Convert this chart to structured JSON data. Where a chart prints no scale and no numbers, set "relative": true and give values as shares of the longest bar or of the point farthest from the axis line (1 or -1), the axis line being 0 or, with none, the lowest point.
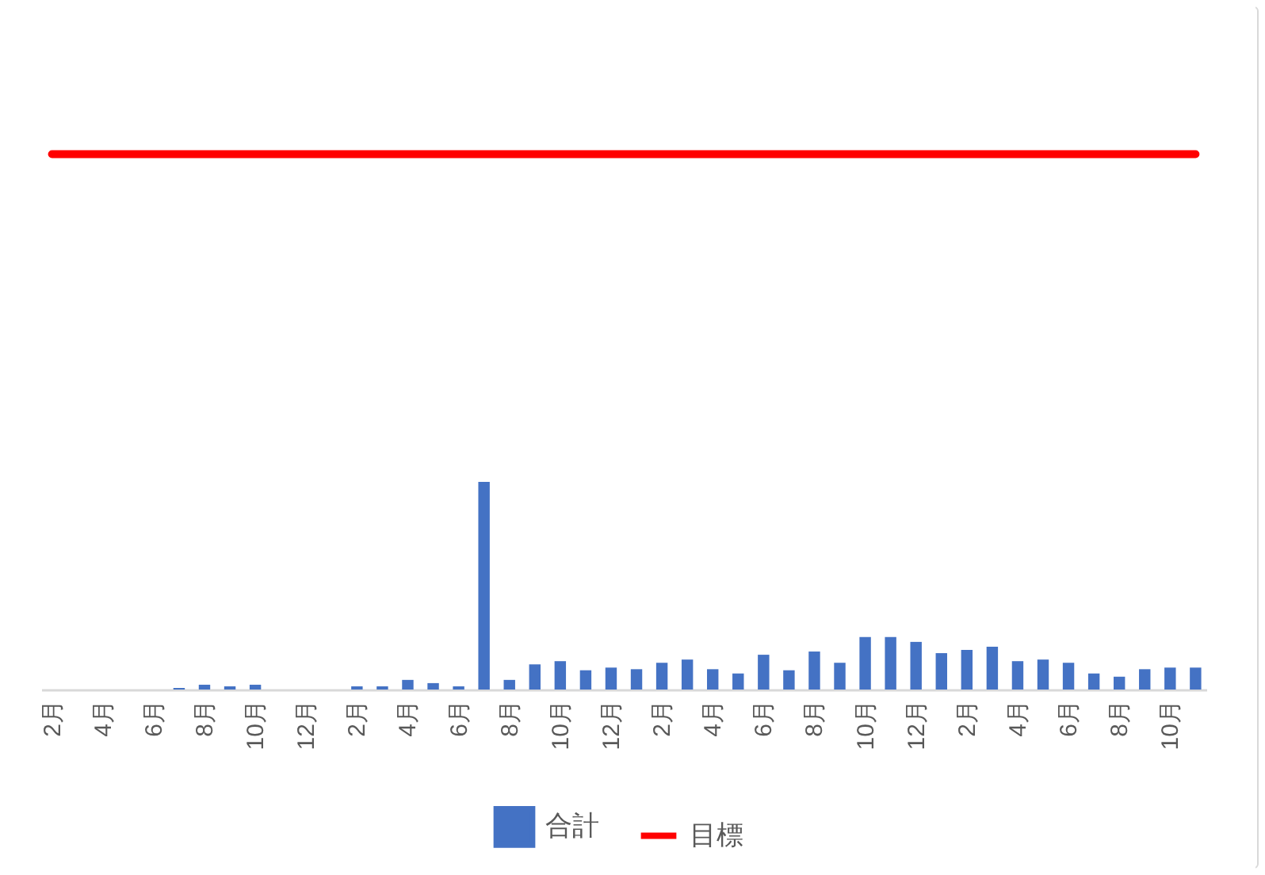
{
  "chart_data": {
    "type": "bar",
    "relative": true,
    "legend": "bottom",
    "grid": false,
    "categories": [
      "2月",
      null,
      "4月",
      null,
      "6月",
      null,
      "8月",
      null,
      "10月",
      null,
      "12月",
      null,
      "2月",
      null,
      "4月",
      null,
      "6月",
      null,
      "8月",
      null,
      "10月",
      null,
      "12月",
      null,
      "2月",
      null,
      "4月",
      null,
      "6月",
      null,
      "8月",
      null,
      "10月",
      null,
      "12月",
      null,
      "2月",
      null,
      "4月",
      null,
      "6月",
      null,
      "8月",
      null,
      "10月",
      null
    ],
    "series": [
      {
        "name": "合計",
        "color": "#4472c4",
        "values": [
          0,
          0,
          0,
          0,
          0,
          0.003,
          0.009,
          0.006,
          0.009,
          0,
          0,
          0,
          0.006,
          0.006,
          0.018,
          0.012,
          0.006,
          0.388,
          0.018,
          0.047,
          0.053,
          0.036,
          0.041,
          0.038,
          0.05,
          0.056,
          0.038,
          0.03,
          0.065,
          0.036,
          0.071,
          0.05,
          0.098,
          0.098,
          0.089,
          0.068,
          0.074,
          0.08,
          0.053,
          0.056,
          0.05,
          0.03,
          0.024,
          0.038,
          0.041,
          0.041
        ]
      },
      {
        "name": "目標",
        "type": "line",
        "color": "#ff0000",
        "values": [
          1,
          1,
          1,
          1,
          1,
          1,
          1,
          1,
          1,
          1,
          1,
          1,
          1,
          1,
          1,
          1,
          1,
          1,
          1,
          1,
          1,
          1,
          1,
          1,
          1,
          1,
          1,
          1,
          1,
          1,
          1,
          1,
          1,
          1,
          1,
          1,
          1,
          1,
          1,
          1,
          1,
          1,
          1,
          1,
          1,
          1
        ]
      }
    ]
  }
}
